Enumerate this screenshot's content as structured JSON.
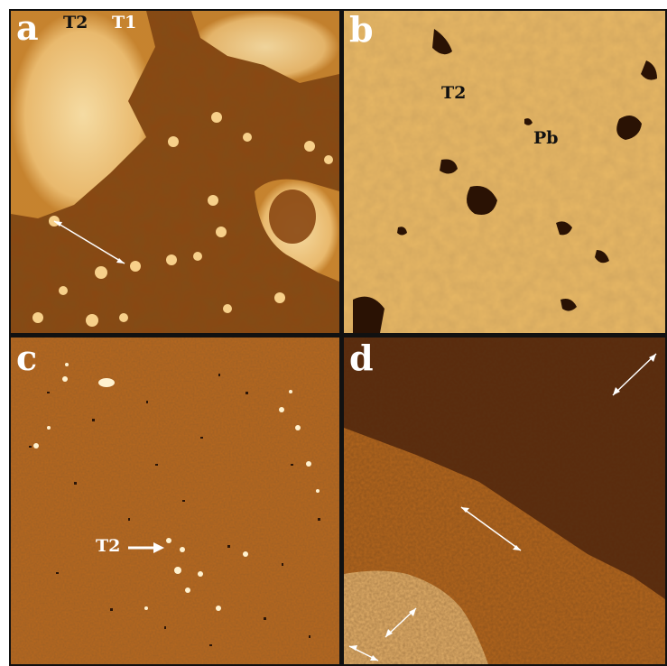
{
  "panels": {
    "a": {
      "letter": "a",
      "labels": {
        "t2": "T2",
        "t1": "T1"
      },
      "colors": {
        "dark": "#7a3f0c",
        "mid": "#b9721f",
        "bright": "#f3d69a"
      }
    },
    "b": {
      "letter": "b",
      "labels": {
        "t2": "T2",
        "pb": "Pb"
      },
      "colors": {
        "base": "#e8b865",
        "pit": "#2a1204"
      }
    },
    "c": {
      "letter": "c",
      "labels": {
        "t2": "T2"
      },
      "colors": {
        "base": "#b5651d",
        "speck": "#2b1507",
        "bright": "#fff2d0"
      }
    },
    "d": {
      "letter": "d",
      "colors": {
        "upper": "#5a2a0c",
        "middle": "#b4661d",
        "lower": "#e3b06a"
      }
    }
  }
}
